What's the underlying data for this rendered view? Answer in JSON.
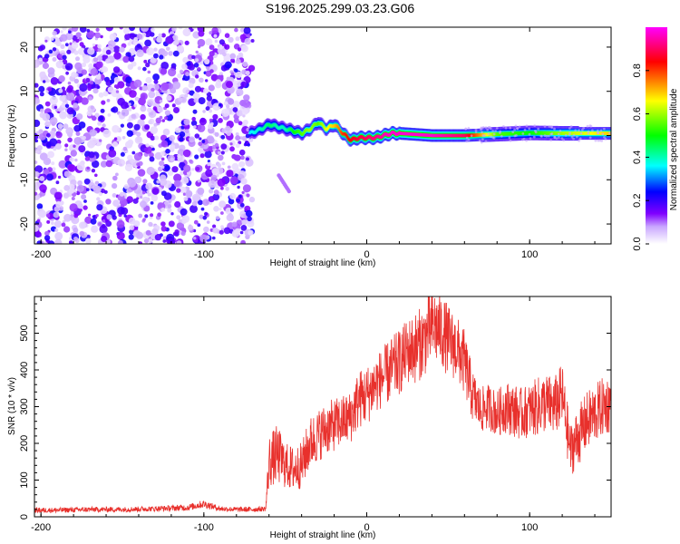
{
  "title": "S196.2025.299.03.23.G06",
  "chart_data": [
    {
      "type": "heatmap",
      "name": "spectrogram",
      "xlabel": "Height of straight line (km)",
      "ylabel": "Frequency (Hz)",
      "xlim": [
        -204,
        150
      ],
      "ylim": [
        -24.5,
        24.5
      ],
      "xticks": [
        -200,
        -100,
        0,
        100
      ],
      "xtick_labels": [
        "-200",
        "-100",
        "0",
        "100"
      ],
      "yticks": [
        -20,
        -10,
        0,
        10,
        20
      ],
      "ytick_labels": [
        "-20",
        "-10",
        "0",
        "10",
        "20"
      ],
      "noise_region_km": [
        -204,
        -70
      ],
      "ridge_km": [
        -72,
        -65,
        -60,
        -55,
        -50,
        -45,
        -40,
        -35,
        -30,
        -25,
        -20,
        -15,
        -10,
        -5,
        0,
        5,
        10,
        15,
        20,
        40,
        60,
        80,
        100,
        120,
        150
      ],
      "ridge_hz": [
        0.5,
        1.5,
        2.5,
        2.0,
        1.5,
        1.0,
        0.5,
        1.5,
        3.0,
        1.5,
        2.5,
        0.5,
        -1.0,
        -0.5,
        -0.5,
        -0.5,
        0.0,
        0.5,
        0.5,
        0.0,
        0.0,
        0.3,
        0.6,
        0.5,
        0.5
      ],
      "ridge_amplitude": [
        0.35,
        0.4,
        0.45,
        0.4,
        0.4,
        0.5,
        0.55,
        0.6,
        0.55,
        0.65,
        0.7,
        0.8,
        0.85,
        0.88,
        0.9,
        0.92,
        0.95,
        0.97,
        0.97,
        0.97,
        0.9,
        0.55,
        0.5,
        0.6,
        0.7
      ],
      "colorbar": {
        "label": "Normalized spectral amplitude",
        "range": [
          0,
          1
        ],
        "ticks": [
          0.0,
          0.2,
          0.4,
          0.6,
          0.8
        ],
        "tick_labels": [
          "0.0",
          "0.2",
          "0.4",
          "0.6",
          "0.8"
        ],
        "colors": [
          "#ffffff",
          "#8000ff",
          "#0000ff",
          "#00ffff",
          "#00ff00",
          "#ffff00",
          "#ff0000",
          "#ff00ff"
        ]
      }
    },
    {
      "type": "line",
      "name": "snr",
      "xlabel": "Height of straight line (km)",
      "ylabel": "SNR (10 * v/v)",
      "xlim": [
        -204,
        150
      ],
      "ylim": [
        0,
        600
      ],
      "xticks": [
        -200,
        -100,
        0,
        100
      ],
      "xtick_labels": [
        "-200",
        "-100",
        "0",
        "100"
      ],
      "yticks": [
        0,
        100,
        200,
        300,
        400,
        500
      ],
      "ytick_labels": [
        "0",
        "100",
        "200",
        "300",
        "400",
        "500"
      ],
      "color": "#e8302c",
      "x": [
        -204,
        -190,
        -170,
        -150,
        -130,
        -110,
        -100,
        -90,
        -80,
        -70,
        -62,
        -60,
        -55,
        -50,
        -45,
        -40,
        -35,
        -30,
        -25,
        -20,
        -15,
        -10,
        -5,
        0,
        5,
        10,
        15,
        20,
        25,
        30,
        35,
        40,
        45,
        50,
        55,
        60,
        65,
        70,
        75,
        80,
        85,
        90,
        95,
        100,
        105,
        110,
        115,
        120,
        125,
        130,
        135,
        140,
        145,
        150
      ],
      "y": [
        18,
        18,
        20,
        20,
        22,
        25,
        35,
        22,
        20,
        20,
        22,
        150,
        170,
        140,
        130,
        140,
        200,
        220,
        240,
        250,
        260,
        270,
        320,
        330,
        360,
        380,
        400,
        420,
        450,
        460,
        480,
        520,
        510,
        480,
        460,
        420,
        330,
        290,
        300,
        280,
        300,
        290,
        280,
        290,
        300,
        310,
        300,
        330,
        180,
        220,
        260,
        280,
        300,
        310
      ],
      "noise_amplitude": [
        8,
        8,
        8,
        8,
        8,
        10,
        12,
        8,
        8,
        8,
        8,
        80,
        90,
        70,
        70,
        70,
        80,
        80,
        80,
        80,
        80,
        80,
        90,
        90,
        90,
        90,
        100,
        100,
        100,
        110,
        110,
        120,
        110,
        110,
        100,
        100,
        80,
        70,
        70,
        70,
        80,
        80,
        80,
        80,
        90,
        90,
        90,
        100,
        80,
        90,
        90,
        90,
        90,
        90
      ]
    }
  ]
}
